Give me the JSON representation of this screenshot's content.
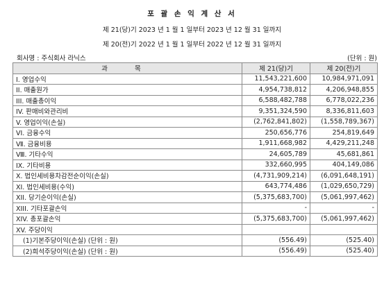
{
  "document": {
    "title": "포 괄 손 익 계 산 서",
    "period_current": "제 21(당)기 2023 년 1 월 1 일부터 2023 년 12 월 31 일까지",
    "period_previous": "제 20(전)기 2022 년 1 월 1 일부터 2022 년 12 월 31 일까지",
    "company": "회사명 : 주식회사 라닉스",
    "unit": "(단위 : 원)"
  },
  "table": {
    "headers": [
      "과 목",
      "제 21(당)기",
      "제 20(전)기"
    ],
    "rows": [
      {
        "item": "I. 영업수익",
        "current": "11,543,221,600",
        "previous": "10,984,971,091"
      },
      {
        "item": "II. 매출원가",
        "current": "4,954,738,812",
        "previous": "4,206,948,855"
      },
      {
        "item": "III. 매출총이익",
        "current": "6,588,482,788",
        "previous": "6,778,022,236"
      },
      {
        "item": "IV. 판매비와관리비",
        "current": "9,351,324,590",
        "previous": "8,336,811,603"
      },
      {
        "item": "V. 영업이익(손실)",
        "current": "(2,762,841,802)",
        "previous": "(1,558,789,367)"
      },
      {
        "item": "VI. 금융수익",
        "current": "250,656,776",
        "previous": "254,819,649"
      },
      {
        "item": "Ⅶ. 금융비용",
        "current": "1,911,668,982",
        "previous": "4,429,211,248"
      },
      {
        "item": "Ⅷ. 기타수익",
        "current": "24,605,789",
        "previous": "45,681,861"
      },
      {
        "item": "IX. 기타비용",
        "current": "332,660,995",
        "previous": "404,149,086"
      },
      {
        "item": "X. 법인세비용차감전순이익(손실)",
        "current": "(4,731,909,214)",
        "previous": "(6,091,648,191)"
      },
      {
        "item": "XI. 법인세비용(수익)",
        "current": "643,774,486",
        "previous": "(1,029,650,729)"
      },
      {
        "item": "XII. 당기순이익(손실)",
        "current": "(5,375,683,700)",
        "previous": "(5,061,997,462)"
      },
      {
        "item": "XIII. 기타포괄손익",
        "current": "-",
        "previous": "-"
      },
      {
        "item": "XIV. 총포괄손익",
        "current": "(5,375,683,700)",
        "previous": "(5,061,997,462)"
      },
      {
        "item": "XV. 주당이익",
        "current": "",
        "previous": ""
      },
      {
        "item": "(1)기본주당이익(손실) (단위 : 원)",
        "current": "(556.49)",
        "previous": "(525.40)",
        "indent": true
      },
      {
        "item": "(2)희석주당이익(손실) (단위 : 원)",
        "current": "(556.49)",
        "previous": "(525.40)",
        "indent": true
      }
    ]
  }
}
